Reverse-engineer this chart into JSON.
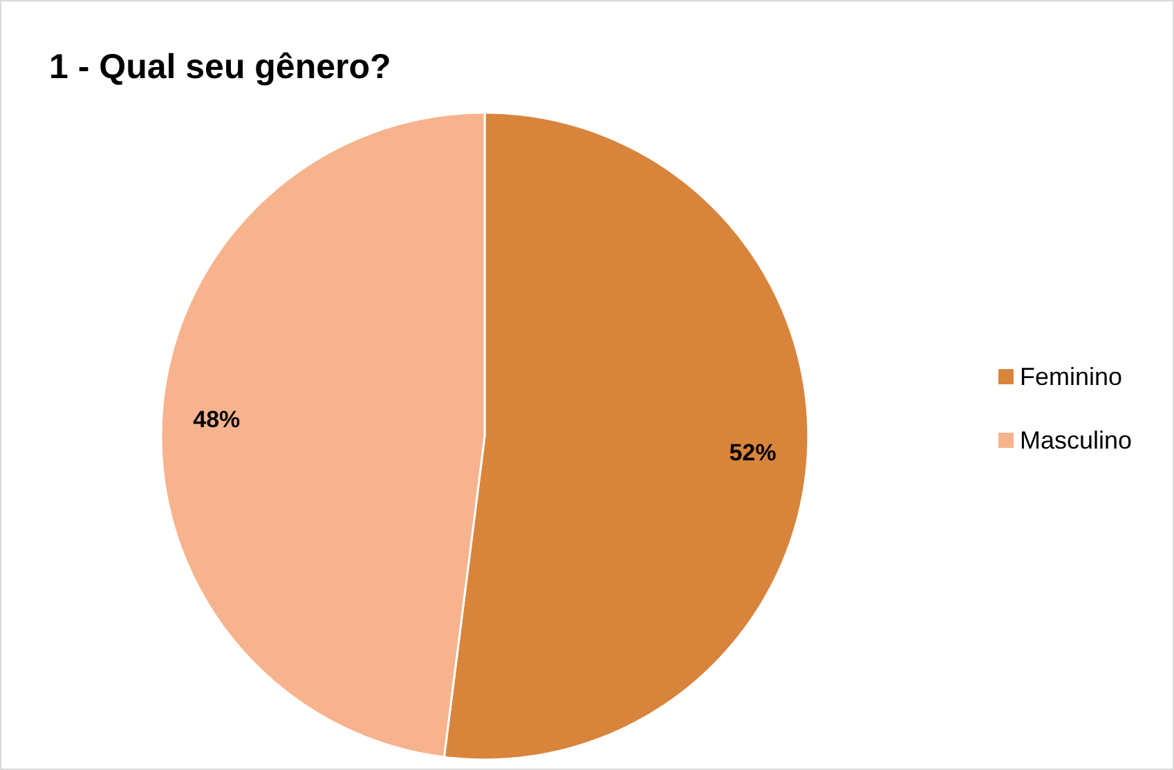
{
  "chart_data": {
    "type": "pie",
    "title": "1 - Qual seu gênero?",
    "categories": [
      "Feminino",
      "Masculino"
    ],
    "values": [
      52,
      48
    ],
    "colors": [
      "#d9843b",
      "#f7b38d"
    ],
    "value_labels": [
      "52%",
      "48%"
    ],
    "legend": "right"
  }
}
